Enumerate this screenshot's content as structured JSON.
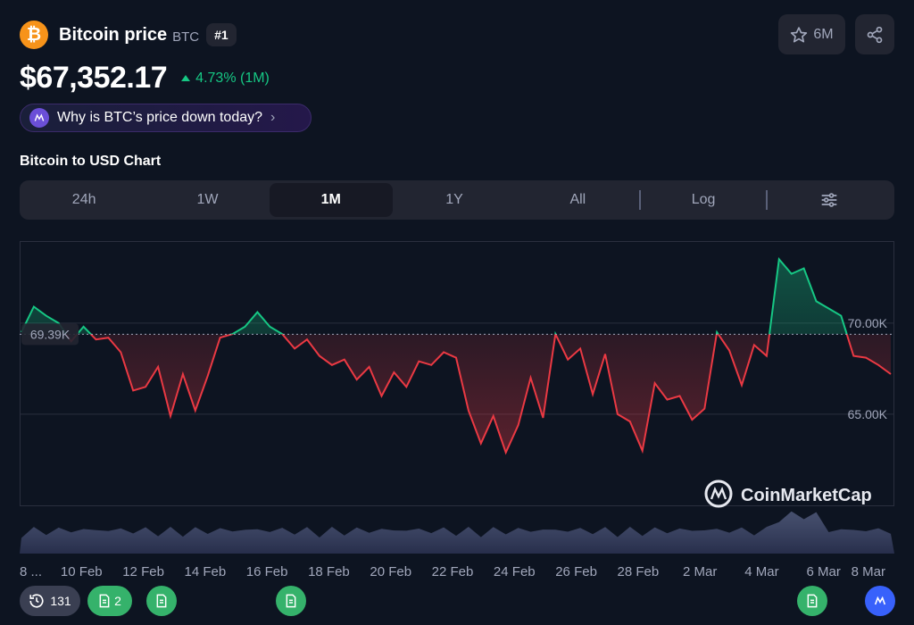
{
  "coin": {
    "logo_symbol": "₿",
    "name": "Bitcoin price",
    "symbol": "BTC",
    "rank": "#1"
  },
  "actions": {
    "watchlist_count": "6M"
  },
  "price": {
    "value": "$67,352.17",
    "change": "4.73% (1M)",
    "change_direction": "up"
  },
  "ai_prompt": {
    "label": "Why is BTC’s price down today?"
  },
  "chart_section": {
    "title": "Bitcoin to USD Chart",
    "tabs": [
      "24h",
      "1W",
      "1M",
      "1Y",
      "All"
    ],
    "active_tab": "1M",
    "log_label": "Log"
  },
  "colors": {
    "up": "#16c784",
    "down": "#ea3943",
    "background": "#0d1421",
    "accent": "#3861fb"
  },
  "chart_data": {
    "type": "area",
    "baseline": 69390,
    "baseline_label": "69.39K",
    "y_ticks": [
      70000,
      65000
    ],
    "y_tick_labels": [
      "70.00K",
      "65.00K"
    ],
    "ylim": [
      60000,
      74500
    ],
    "x_ticks": [
      "8 ...",
      "10 Feb",
      "12 Feb",
      "14 Feb",
      "16 Feb",
      "18 Feb",
      "20 Feb",
      "22 Feb",
      "24 Feb",
      "26 Feb",
      "28 Feb",
      "2 Mar",
      "4 Mar",
      "6 Mar",
      "8 Mar"
    ],
    "x_range": [
      "2026-02-08",
      "2026-03-08"
    ],
    "series": [
      {
        "x": [
          "2026-02-08",
          "2026-02-08",
          "2026-02-09",
          "2026-02-09",
          "2026-02-09",
          "2026-02-10",
          "2026-02-10",
          "2026-02-10",
          "2026-02-11",
          "2026-02-11",
          "2026-02-12",
          "2026-02-12",
          "2026-02-12",
          "2026-02-13",
          "2026-02-13",
          "2026-02-14",
          "2026-02-14",
          "2026-02-14",
          "2026-02-15",
          "2026-02-15",
          "2026-02-16",
          "2026-02-16",
          "2026-02-16",
          "2026-02-17",
          "2026-02-17",
          "2026-02-18",
          "2026-02-18",
          "2026-02-18",
          "2026-02-19",
          "2026-02-19",
          "2026-02-20",
          "2026-02-20",
          "2026-02-21",
          "2026-02-21",
          "2026-02-22",
          "2026-02-22",
          "2026-02-23",
          "2026-02-23",
          "2026-02-23",
          "2026-02-24",
          "2026-02-24",
          "2026-02-25",
          "2026-02-25",
          "2026-02-26",
          "2026-02-26",
          "2026-02-26",
          "2026-02-27",
          "2026-02-27",
          "2026-02-28",
          "2026-02-28",
          "2026-02-28",
          "2026-03-01",
          "2026-03-01",
          "2026-03-02",
          "2026-03-02",
          "2026-03-02",
          "2026-03-03",
          "2026-03-03",
          "2026-03-04",
          "2026-03-04",
          "2026-03-04",
          "2026-03-05",
          "2026-03-05",
          "2026-03-05",
          "2026-03-06",
          "2026-03-06",
          "2026-03-06",
          "2026-03-07",
          "2026-03-07",
          "2026-03-08",
          "2026-03-08"
        ],
        "values": [
          69500,
          70900,
          70400,
          70000,
          69000,
          69800,
          69100,
          69200,
          68400,
          66300,
          66500,
          67600,
          64900,
          67200,
          65200,
          67100,
          69200,
          69400,
          69800,
          70600,
          69800,
          69400,
          68600,
          69100,
          68200,
          67700,
          68000,
          66900,
          67600,
          66000,
          67300,
          66500,
          67900,
          67700,
          68400,
          68100,
          65200,
          63400,
          64900,
          62900,
          64400,
          67000,
          64800,
          69400,
          68000,
          68600,
          66100,
          68300,
          65000,
          64600,
          63000,
          66700,
          65800,
          66000,
          64700,
          65300,
          69500,
          68500,
          66600,
          68800,
          68200,
          73500,
          72700,
          73000,
          71200,
          70800,
          70400,
          68200,
          68100,
          67700,
          67200
        ]
      }
    ]
  },
  "watermark": "CoinMarketCap",
  "events": {
    "history_count": "131",
    "news_count": "2"
  }
}
